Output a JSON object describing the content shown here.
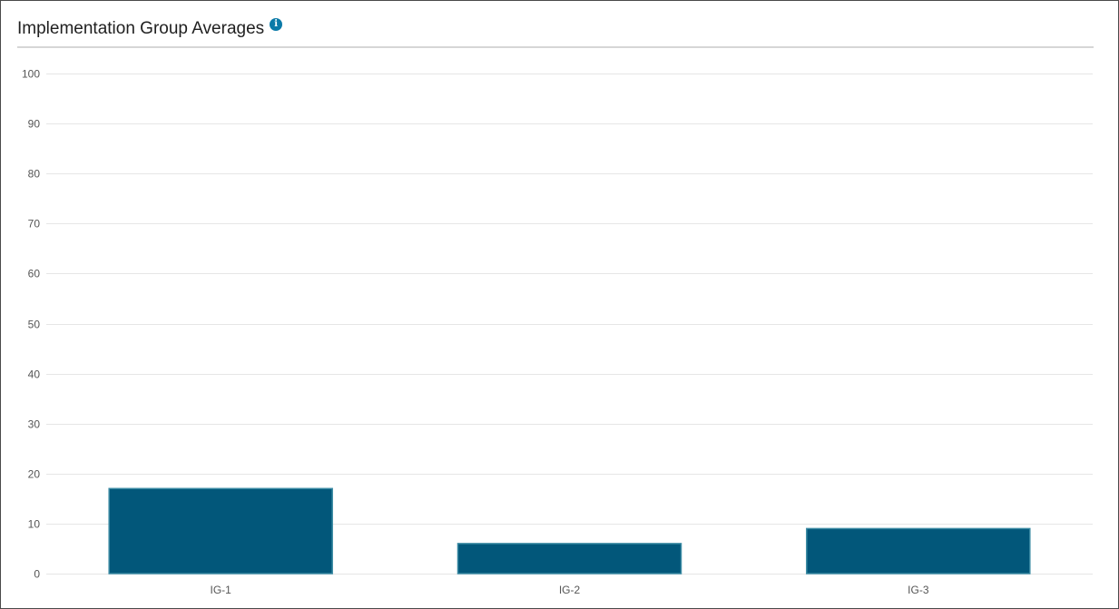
{
  "header": {
    "title": "Implementation Group Averages",
    "info_icon": "info-icon"
  },
  "colors": {
    "bar_fill": "#02577a",
    "bar_stroke": "#3a8aa3",
    "grid": "#e6e6e6",
    "info_icon": "#0b7aa8"
  },
  "chart_data": {
    "type": "bar",
    "categories": [
      "IG-1",
      "IG-2",
      "IG-3"
    ],
    "values": [
      17,
      6,
      9
    ],
    "title": "Implementation Group Averages",
    "xlabel": "",
    "ylabel": "",
    "ylim": [
      0,
      100
    ],
    "yticks": [
      0,
      10,
      20,
      30,
      40,
      50,
      60,
      70,
      80,
      90,
      100
    ],
    "grid": true,
    "legend": "none"
  }
}
